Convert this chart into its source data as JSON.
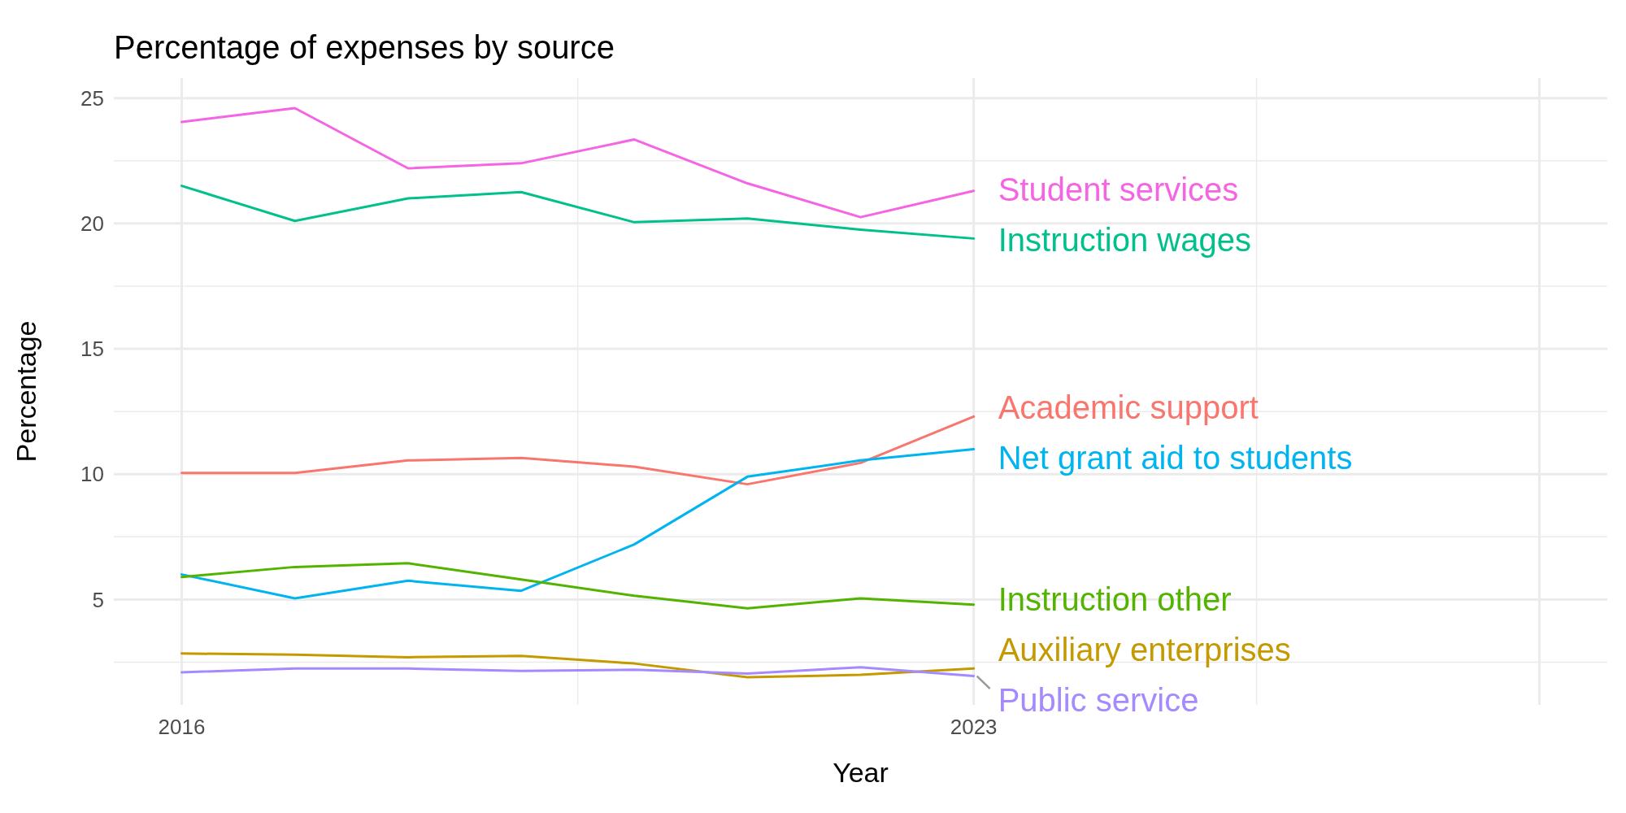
{
  "chart_data": {
    "type": "line",
    "title": "Percentage of expenses by source",
    "xlabel": "Year",
    "ylabel": "Percentage",
    "x": [
      2016,
      2017,
      2018,
      2019,
      2020,
      2021,
      2022,
      2023
    ],
    "xlim": [
      2015.4,
      2028.6
    ],
    "xticks": [
      2016,
      2023,
      {
        "value": 2028,
        "label": null
      }
    ],
    "ylim": [
      0.8,
      25.8
    ],
    "yticks": [
      5,
      10,
      15,
      20,
      25
    ],
    "grid": true,
    "legend": false,
    "marker": "none",
    "line_style": "solid",
    "series": [
      {
        "name": "Student services",
        "color": "#f564e3",
        "values": [
          24.05,
          24.6,
          22.2,
          22.4,
          23.35,
          21.6,
          20.25,
          21.3
        ]
      },
      {
        "name": "Instruction wages",
        "color": "#00c08b",
        "values": [
          21.5,
          20.1,
          21.0,
          21.25,
          20.05,
          20.2,
          19.75,
          19.4
        ]
      },
      {
        "name": "Academic support",
        "color": "#f8766d",
        "values": [
          10.05,
          10.05,
          10.55,
          10.65,
          10.3,
          9.6,
          10.45,
          12.3
        ]
      },
      {
        "name": "Net grant aid to students",
        "color": "#00b4ef",
        "values": [
          6.0,
          5.05,
          5.75,
          5.35,
          7.2,
          9.9,
          10.55,
          11.0
        ]
      },
      {
        "name": "Instruction other",
        "color": "#53b400",
        "values": [
          5.9,
          6.3,
          6.45,
          5.8,
          5.15,
          4.65,
          5.05,
          4.8
        ]
      },
      {
        "name": "Auxiliary enterprises",
        "color": "#c49a00",
        "values": [
          2.85,
          2.8,
          2.7,
          2.75,
          2.45,
          1.9,
          2.0,
          2.25
        ]
      },
      {
        "name": "Public service",
        "color": "#a58aff",
        "values": [
          2.1,
          2.25,
          2.25,
          2.15,
          2.2,
          2.05,
          2.3,
          1.95
        ]
      }
    ]
  }
}
